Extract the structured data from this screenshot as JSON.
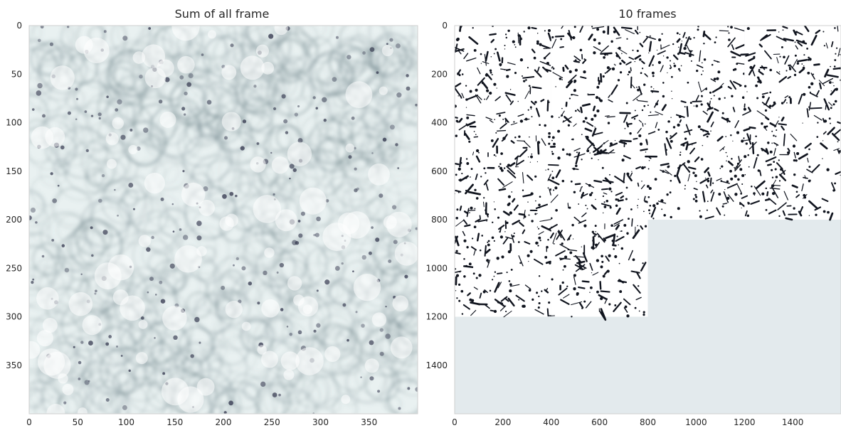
{
  "chart_data": [
    {
      "type": "heatmap",
      "title": "Sum of all frame",
      "colormap": "bone_r",
      "xlim": [
        0,
        400
      ],
      "ylim": [
        400,
        0
      ],
      "xticks": [
        0,
        50,
        100,
        150,
        200,
        250,
        300,
        350
      ],
      "yticks": [
        0,
        50,
        100,
        150,
        200,
        250,
        300,
        350
      ],
      "grid": false
    },
    {
      "type": "heatmap",
      "title": "10 frames",
      "colormap": "bone_r",
      "xlim": [
        0,
        1600
      ],
      "ylim": [
        1600,
        0
      ],
      "xticks": [
        0,
        200,
        400,
        600,
        800,
        1000,
        1200,
        1400
      ],
      "yticks": [
        0,
        200,
        400,
        600,
        800,
        1000,
        1200,
        1400
      ],
      "tile_size": 400,
      "tiles_with_frames": 10,
      "empty_fill_color": "#e3eaed",
      "grid": false
    }
  ]
}
